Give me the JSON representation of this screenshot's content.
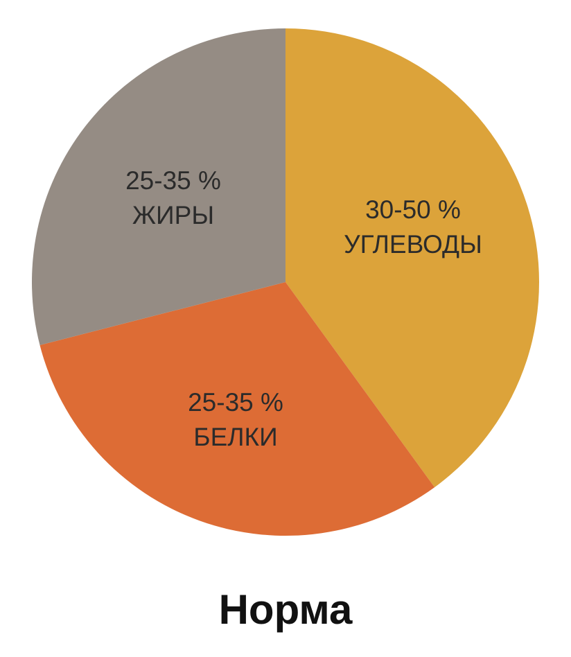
{
  "chart_data": {
    "type": "pie",
    "title": "Норма",
    "slices": [
      {
        "label": "УГЛЕВОДЫ",
        "value_label": "30-50 %",
        "value": 40,
        "color": "#dca33a"
      },
      {
        "label": "БЕЛКИ",
        "value_label": "25-35 %",
        "value": 31,
        "color": "#dd6c35"
      },
      {
        "label": "ЖИРЫ",
        "value_label": "25-35 %",
        "value": 29,
        "color": "#958c84"
      }
    ]
  }
}
